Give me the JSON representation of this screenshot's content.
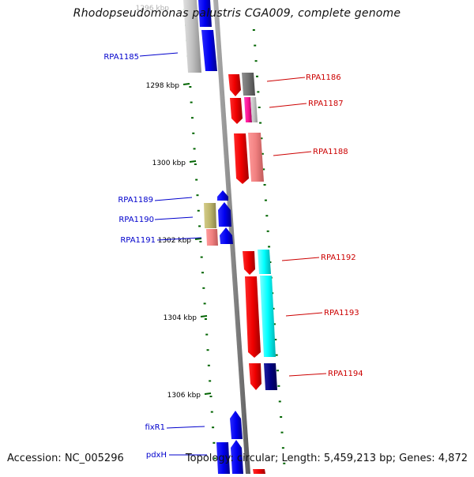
{
  "title": "Rhodopseudomonas palustris CGA009, complete genome",
  "accession": "Accession: NC_005296",
  "summary": "Topology: circular; Length: 5,459,213 bp; Genes: 4,872",
  "scale_labels": [
    {
      "text": "1296 kbp",
      "faded": true
    },
    {
      "text": "1298 kbp"
    },
    {
      "text": "1300 kbp"
    },
    {
      "text": "1302 kbp"
    },
    {
      "text": "1304 kbp"
    },
    {
      "text": "1306 kbp"
    }
  ],
  "left_labels": [
    "RPA1185",
    "RPA1189",
    "RPA1190",
    "RPA1191",
    "fixR1",
    "pdxH"
  ],
  "right_labels": [
    "RPA1186",
    "RPA1187",
    "RPA1188",
    "RPA1192",
    "RPA1193",
    "RPA1194"
  ],
  "colors": {
    "forward": "#0000ff",
    "reverse": "#ff0000",
    "label_left": "#0000cc",
    "label_right": "#cc0000",
    "tick": "#006400",
    "backbone": "#808080"
  }
}
